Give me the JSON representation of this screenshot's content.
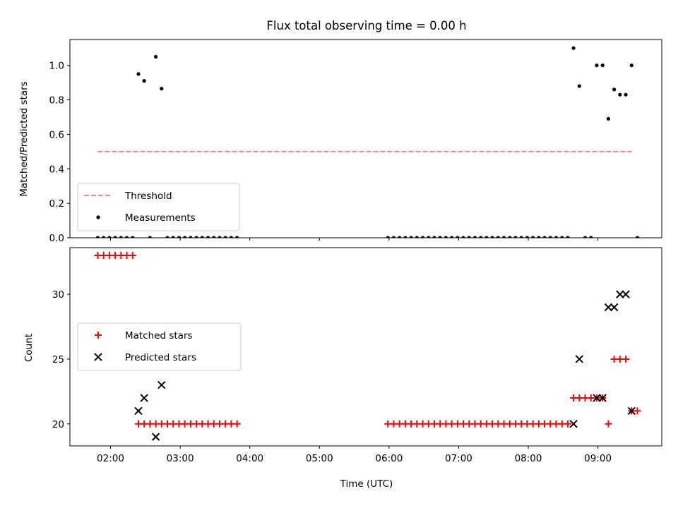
{
  "title": "Flux total observing time = 0.00 h",
  "chart_data": [
    {
      "type": "scatter",
      "ylabel": "Matched/Predicted stars",
      "ylim": [
        0.0,
        1.15
      ],
      "xlim": [
        "01:25",
        "09:55"
      ],
      "ytick_values": [
        0.0,
        0.2,
        0.4,
        0.6,
        0.8,
        1.0
      ],
      "ytick_labels": [
        "0.0",
        "0.2",
        "0.4",
        "0.6",
        "0.8",
        "1.0"
      ],
      "legend": {
        "placement": "lower-left",
        "entries": [
          {
            "label": "Threshold",
            "style": "dashed-line",
            "color": "#ff7f7f"
          },
          {
            "label": "Measurements",
            "style": "dot",
            "color": "#000000"
          }
        ]
      },
      "series": [
        {
          "name": "Threshold",
          "style": "dashed-line",
          "color": "#ff7f7f",
          "x": [
            "01:49",
            "09:29"
          ],
          "y": [
            0.5,
            0.5
          ]
        },
        {
          "name": "Measurements",
          "style": "dot",
          "color": "#000000",
          "x": [
            "01:49",
            "01:54",
            "01:59",
            "02:04",
            "02:09",
            "02:14",
            "02:19",
            "02:24",
            "02:29",
            "02:34",
            "02:39",
            "02:44",
            "02:49",
            "02:54",
            "02:59",
            "03:04",
            "03:09",
            "03:14",
            "03:19",
            "03:24",
            "03:29",
            "03:34",
            "03:39",
            "03:44",
            "03:49",
            "05:59",
            "06:04",
            "06:09",
            "06:14",
            "06:19",
            "06:24",
            "06:29",
            "06:34",
            "06:39",
            "06:44",
            "06:49",
            "06:54",
            "06:59",
            "07:04",
            "07:09",
            "07:14",
            "07:19",
            "07:24",
            "07:29",
            "07:34",
            "07:39",
            "07:44",
            "07:49",
            "07:54",
            "07:59",
            "08:04",
            "08:09",
            "08:14",
            "08:19",
            "08:24",
            "08:29",
            "08:34",
            "08:39",
            "08:44",
            "08:49",
            "08:54",
            "08:59",
            "09:04",
            "09:09",
            "09:14",
            "09:19",
            "09:24",
            "09:29",
            "09:34"
          ],
          "y": [
            0,
            0,
            0,
            0,
            0,
            0,
            0,
            0.95,
            0.91,
            0,
            1.05,
            0.865,
            0,
            0,
            0,
            0,
            0,
            0,
            0,
            0,
            0,
            0,
            0,
            0,
            0,
            0,
            0,
            0,
            0,
            0,
            0,
            0,
            0,
            0,
            0,
            0,
            0,
            0,
            0,
            0,
            0,
            0,
            0,
            0,
            0,
            0,
            0,
            0,
            0,
            0,
            0,
            0,
            0,
            0,
            0,
            0,
            0,
            1.1,
            0.88,
            0,
            0,
            1.0,
            1.0,
            0.69,
            0.86,
            0.83,
            0.83,
            1.0,
            0
          ]
        }
      ]
    },
    {
      "type": "scatter",
      "xlabel": "Time (UTC)",
      "ylabel": "Count",
      "ylim": [
        18.3,
        33.6
      ],
      "xlim": [
        "01:25",
        "09:55"
      ],
      "ytick_values": [
        20,
        25,
        30
      ],
      "ytick_labels": [
        "20",
        "25",
        "30"
      ],
      "xtick_values": [
        "02:00",
        "03:00",
        "04:00",
        "05:00",
        "06:00",
        "07:00",
        "08:00",
        "09:00"
      ],
      "xtick_labels": [
        "02:00",
        "03:00",
        "04:00",
        "05:00",
        "06:00",
        "07:00",
        "08:00",
        "09:00"
      ],
      "legend": {
        "placement": "center-left",
        "entries": [
          {
            "label": "Matched stars",
            "style": "plus",
            "color": "#ff0000"
          },
          {
            "label": "Predicted stars",
            "style": "x",
            "color": "#000000"
          }
        ]
      },
      "series": [
        {
          "name": "Matched stars",
          "style": "plus",
          "color": "#ff0000",
          "x": [
            "01:49",
            "01:54",
            "01:59",
            "02:04",
            "02:09",
            "02:14",
            "02:19",
            "02:24",
            "02:29",
            "02:34",
            "02:39",
            "02:44",
            "02:49",
            "02:54",
            "02:59",
            "03:04",
            "03:09",
            "03:14",
            "03:19",
            "03:24",
            "03:29",
            "03:34",
            "03:39",
            "03:44",
            "03:49",
            "05:59",
            "06:04",
            "06:09",
            "06:14",
            "06:19",
            "06:24",
            "06:29",
            "06:34",
            "06:39",
            "06:44",
            "06:49",
            "06:54",
            "06:59",
            "07:04",
            "07:09",
            "07:14",
            "07:19",
            "07:24",
            "07:29",
            "07:34",
            "07:39",
            "07:44",
            "07:49",
            "07:54",
            "07:59",
            "08:04",
            "08:09",
            "08:14",
            "08:19",
            "08:24",
            "08:29",
            "08:34",
            "08:39",
            "08:44",
            "08:49",
            "08:54",
            "08:59",
            "09:04",
            "09:09",
            "09:14",
            "09:19",
            "09:24",
            "09:29",
            "09:34"
          ],
          "y": [
            33,
            33,
            33,
            33,
            33,
            33,
            33,
            20,
            20,
            20,
            20,
            20,
            20,
            20,
            20,
            20,
            20,
            20,
            20,
            20,
            20,
            20,
            20,
            20,
            20,
            20,
            20,
            20,
            20,
            20,
            20,
            20,
            20,
            20,
            20,
            20,
            20,
            20,
            20,
            20,
            20,
            20,
            20,
            20,
            20,
            20,
            20,
            20,
            20,
            20,
            20,
            20,
            20,
            20,
            20,
            20,
            20,
            22,
            22,
            22,
            22,
            22,
            22,
            20,
            25,
            25,
            25,
            21,
            21
          ]
        },
        {
          "name": "Predicted stars",
          "style": "x",
          "color": "#000000",
          "x": [
            "02:24",
            "02:29",
            "02:39",
            "02:44",
            "08:39",
            "08:44",
            "08:59",
            "09:04",
            "09:09",
            "09:14",
            "09:19",
            "09:24",
            "09:29"
          ],
          "y": [
            21,
            22,
            19,
            23,
            20,
            25,
            22,
            22,
            29,
            29,
            30,
            30,
            21
          ]
        }
      ]
    }
  ]
}
